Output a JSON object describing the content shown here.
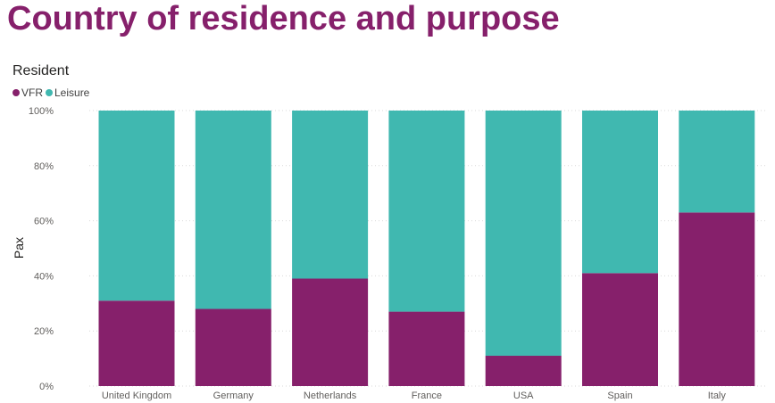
{
  "page": {
    "title": "Country of residence and purpose"
  },
  "colors": {
    "title": "#86206b",
    "vfr": "#86206b",
    "leisure": "#40b8b0",
    "grid": "#d9d9d9"
  },
  "chart_data": {
    "type": "bar",
    "stacked": "100%",
    "title": "Resident",
    "ylabel": "Pax",
    "xlabel": "",
    "ylim": [
      0,
      100
    ],
    "y_ticks": [
      "0%",
      "20%",
      "40%",
      "60%",
      "80%",
      "100%"
    ],
    "y_tick_values": [
      0,
      20,
      40,
      60,
      80,
      100
    ],
    "grid": true,
    "legend": "top-left",
    "categories": [
      "United Kingdom",
      "Germany",
      "Netherlands",
      "France",
      "USA",
      "Spain",
      "Italy"
    ],
    "series": [
      {
        "name": "VFR",
        "color": "#86206b",
        "values": [
          31,
          28,
          39,
          27,
          11,
          41,
          63
        ]
      },
      {
        "name": "Leisure",
        "color": "#40b8b0",
        "values": [
          69,
          72,
          61,
          73,
          89,
          59,
          37
        ]
      }
    ]
  }
}
